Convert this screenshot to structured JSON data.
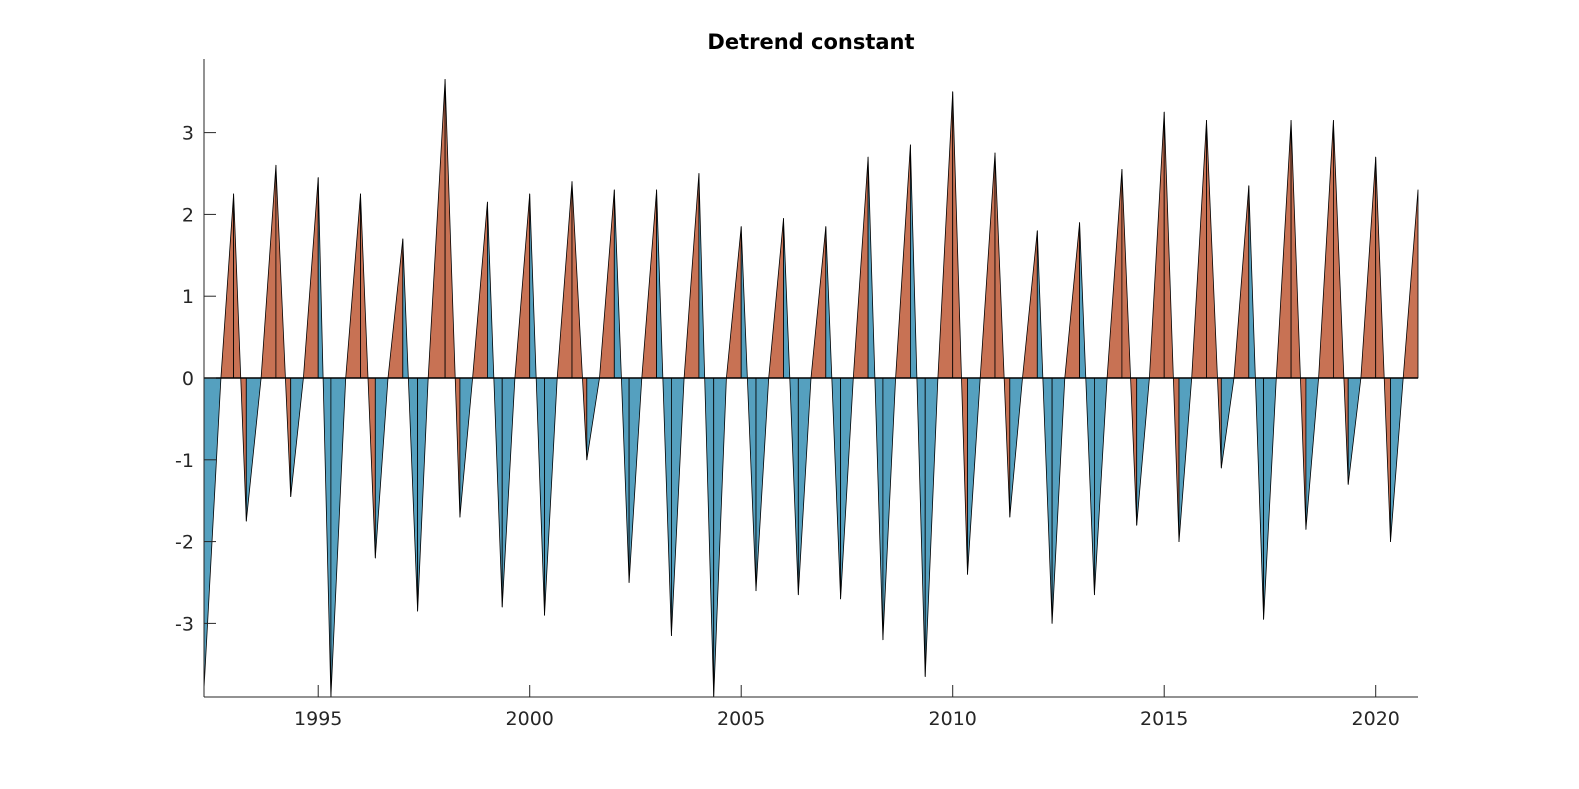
{
  "chart_data": {
    "type": "area",
    "title": "Detrend constant",
    "xlabel": "",
    "ylabel": "",
    "xlim": [
      1992.3,
      2021.0
    ],
    "ylim": [
      -3.9,
      3.9
    ],
    "x_ticks": [
      1995,
      2000,
      2005,
      2010,
      2015,
      2020
    ],
    "x_tick_labels": [
      "1995",
      "2000",
      "2005",
      "2010",
      "2015",
      "2020"
    ],
    "y_ticks": [
      -3,
      -2,
      -1,
      0,
      1,
      2,
      3
    ],
    "y_tick_labels": [
      "-3",
      "-2",
      "-1",
      "0",
      "1",
      "2",
      "3"
    ],
    "grid": false,
    "colors": {
      "positive": "#c87254",
      "negative": "#55a0bf",
      "line": "#000000"
    },
    "series": [
      {
        "x": [
          1992.3,
          1992.7,
          1993.0,
          1993.3,
          1993.65,
          1994.0,
          1994.35,
          1994.65,
          1995.0,
          1995.3,
          1995.65,
          1996.0,
          1996.35,
          1996.65,
          1997.0,
          1997.35,
          1997.6,
          1998.0,
          1998.35,
          1998.65,
          1999.0,
          1999.35,
          1999.65,
          2000.0,
          2000.35,
          2000.65,
          2001.0,
          2001.35,
          2001.65,
          2002.0,
          2002.35,
          2002.65,
          2003.0,
          2003.35,
          2003.65,
          2004.0,
          2004.35,
          2004.65,
          2005.0,
          2005.35,
          2005.65,
          2006.0,
          2006.35,
          2006.65,
          2007.0,
          2007.35,
          2007.65,
          2008.0,
          2008.35,
          2008.65,
          2009.0,
          2009.35,
          2009.65,
          2010.0,
          2010.35,
          2010.65,
          2011.0,
          2011.35,
          2011.65,
          2012.0,
          2012.35,
          2012.65,
          2013.0,
          2013.35,
          2013.65,
          2014.0,
          2014.35,
          2014.65,
          2015.0,
          2015.35,
          2015.65,
          2016.0,
          2016.35,
          2016.65,
          2017.0,
          2017.35,
          2017.65,
          2018.0,
          2018.35,
          2018.65,
          2019.0,
          2019.35,
          2019.65,
          2020.0,
          2020.35,
          2020.65,
          2021.0
        ],
        "y": [
          -3.8,
          0.0,
          2.25,
          -1.75,
          0.0,
          2.6,
          -1.45,
          0.0,
          2.45,
          -3.9,
          0.0,
          2.25,
          -2.2,
          0.0,
          1.7,
          -2.85,
          0.0,
          3.65,
          -1.7,
          0.0,
          2.15,
          -2.8,
          0.0,
          2.25,
          -2.9,
          0.0,
          2.4,
          -1.0,
          0.0,
          2.3,
          -2.5,
          0.0,
          2.3,
          -3.15,
          0.0,
          2.5,
          -3.9,
          0.0,
          1.85,
          -2.6,
          0.0,
          1.95,
          -2.65,
          0.0,
          1.85,
          -2.7,
          0.0,
          2.7,
          -3.2,
          0.0,
          2.85,
          -3.65,
          0.0,
          3.5,
          -2.4,
          0.0,
          2.75,
          -1.7,
          0.0,
          1.8,
          -3.0,
          0.0,
          1.9,
          -2.65,
          0.0,
          2.55,
          -1.8,
          0.0,
          3.25,
          -2.0,
          0.0,
          3.15,
          -1.1,
          0.0,
          2.35,
          -2.95,
          0.0,
          3.15,
          -1.85,
          0.0,
          3.15,
          -1.3,
          0.0,
          2.7,
          -2.0,
          0.0,
          2.3
        ]
      }
    ]
  }
}
